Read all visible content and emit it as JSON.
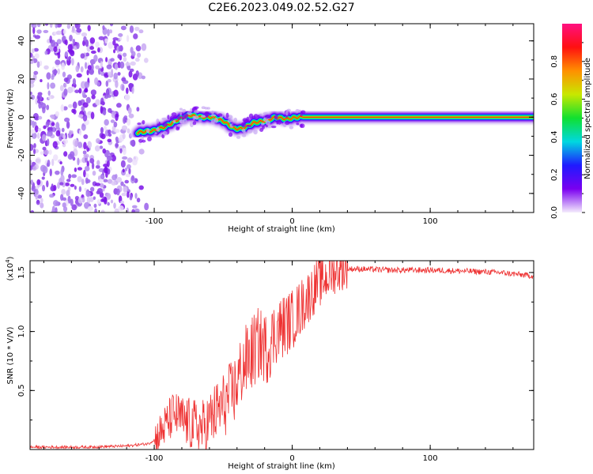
{
  "title": "C2E6.2023.049.02.52.G27",
  "chart_data": [
    {
      "type": "heatmap",
      "xlabel": "Height of straight line (km)",
      "ylabel": "Frequency (Hz)",
      "xlim": [
        -190,
        175
      ],
      "ylim": [
        -50,
        49
      ],
      "x_ticks": [
        "-100",
        "0",
        "100"
      ],
      "y_ticks": [
        "-40",
        "-20",
        "0",
        "20",
        "40"
      ],
      "colorbar": {
        "label": "Normalized spectral amplitude",
        "range": [
          0.0,
          1.0
        ],
        "ticks": [
          "0.0",
          "0.2",
          "0.4",
          "0.6",
          "0.8"
        ],
        "colors": [
          "#f4ecfc",
          "#7a00f0",
          "#1f1aff",
          "#00d8e0",
          "#10e030",
          "#c8e800",
          "#ff9000",
          "#ff1010",
          "#ff1080"
        ]
      },
      "features": {
        "noise_region_x": [
          -190,
          -105
        ],
        "signal_trace": [
          {
            "x": -112,
            "y": -8
          },
          {
            "x": -100,
            "y": -7
          },
          {
            "x": -92,
            "y": -5
          },
          {
            "x": -82,
            "y": -1
          },
          {
            "x": -74,
            "y": 1
          },
          {
            "x": -66,
            "y": 0
          },
          {
            "x": -58,
            "y": 0
          },
          {
            "x": -50,
            "y": -2
          },
          {
            "x": -42,
            "y": -6
          },
          {
            "x": -36,
            "y": -6
          },
          {
            "x": -28,
            "y": -3
          },
          {
            "x": -20,
            "y": -2
          },
          {
            "x": -12,
            "y": 0
          },
          {
            "x": -4,
            "y": -1
          },
          {
            "x": 4,
            "y": 0
          },
          {
            "x": 175,
            "y": 0
          }
        ]
      }
    },
    {
      "type": "line",
      "xlabel": "Height of straight line (km)",
      "ylabel": "SNR (10 * V/V)",
      "y_multiplier": "(x10",
      "y_multiplier_exp": "4",
      "xlim": [
        -190,
        175
      ],
      "ylim": [
        0,
        1.6
      ],
      "x_ticks": [
        "-100",
        "0",
        "100"
      ],
      "y_ticks": [
        "0.5",
        "1.0",
        "1.5"
      ],
      "color": "#ee3333",
      "series": [
        {
          "x": [
            -190,
            -150,
            -120,
            -104,
            -98,
            -92,
            -86,
            -80,
            -72,
            -64,
            -56,
            -48,
            -42,
            -36,
            -30,
            -24,
            -18,
            -12,
            -6,
            0,
            6,
            12,
            18,
            24,
            30,
            36,
            40,
            50,
            70,
            100,
            130,
            150,
            175
          ],
          "y": [
            0.02,
            0.02,
            0.03,
            0.05,
            0.1,
            0.2,
            0.3,
            0.25,
            0.2,
            0.18,
            0.3,
            0.4,
            0.5,
            0.7,
            0.8,
            0.9,
            0.85,
            1.0,
            1.05,
            1.1,
            1.2,
            1.3,
            1.4,
            1.45,
            1.5,
            1.52,
            1.53,
            1.53,
            1.52,
            1.52,
            1.51,
            1.5,
            1.47
          ]
        }
      ]
    }
  ]
}
